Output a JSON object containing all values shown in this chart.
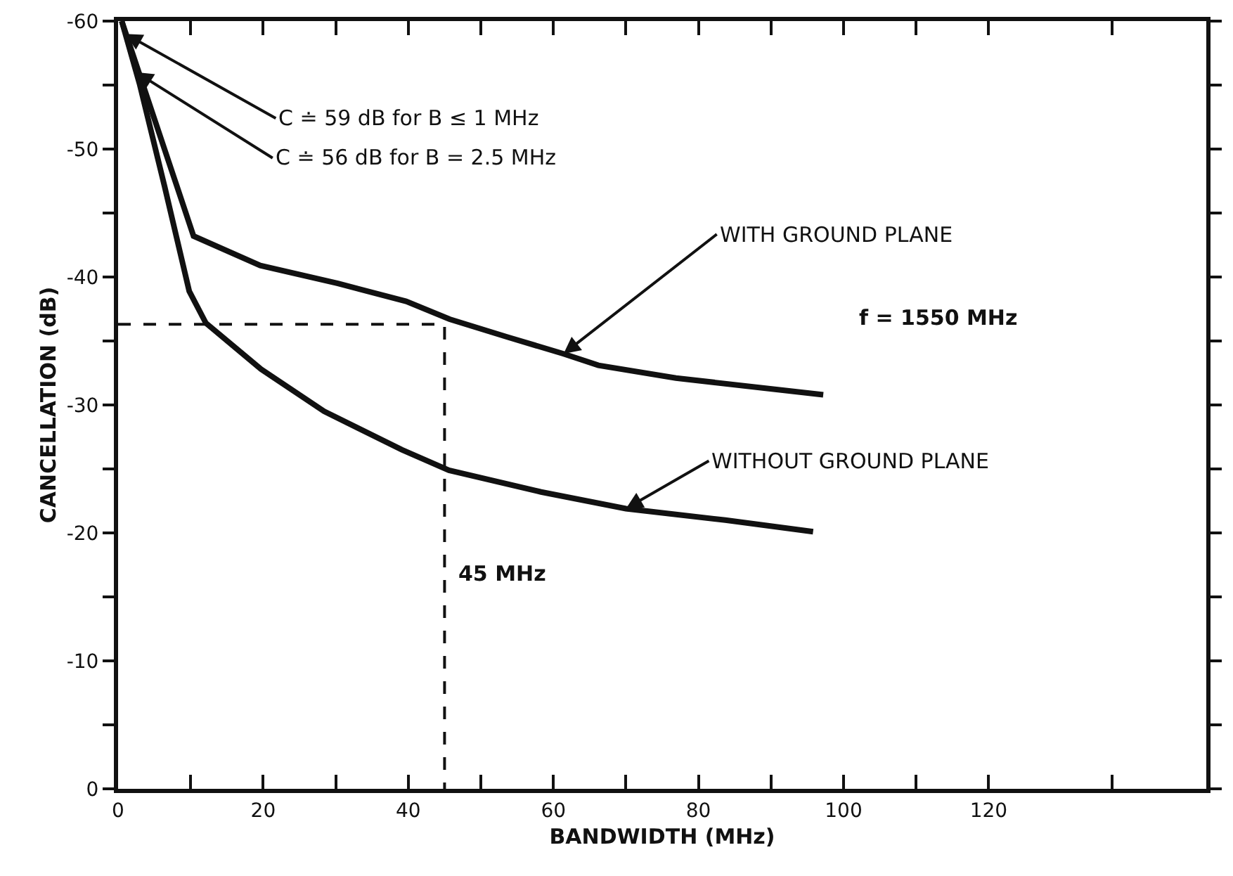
{
  "chart_data": {
    "type": "line",
    "xlabel": "BANDWIDTH (MHz)",
    "ylabel": "CANCELLATION (dB)",
    "xlim": [
      0,
      150
    ],
    "xticks": [
      0,
      {
        "value": 10,
        "label": null
      },
      20,
      {
        "value": 30,
        "label": null
      },
      40,
      {
        "value": 50,
        "label": null
      },
      60,
      {
        "value": 70,
        "label": null
      },
      80,
      {
        "value": 90,
        "label": null
      },
      100,
      {
        "value": 110,
        "label": null
      },
      120,
      {
        "value": 137,
        "label": null
      }
    ],
    "ylim": [
      0,
      -60
    ],
    "yticks": [
      0,
      {
        "value": -5,
        "label": null
      },
      -10,
      {
        "value": -15,
        "label": null
      },
      -20,
      {
        "value": -25,
        "label": null
      },
      -30,
      {
        "value": -35,
        "label": null
      },
      -40,
      {
        "value": -45,
        "label": null
      },
      -50,
      {
        "value": -55,
        "label": null
      },
      -60
    ],
    "series": [
      {
        "color": "#111111",
        "line_style": "solid",
        "x": [
          0.5,
          10.4,
          19.6,
          30.3,
          39.7,
          45.7,
          53.7,
          61.4,
          66.2,
          76.9,
          97.2
        ],
        "values": [
          -60,
          -43.2,
          -40.9,
          -39.5,
          -38.1,
          -36.7,
          -35.3,
          -34.0,
          -33.1,
          -32.1,
          -30.8
        ]
      },
      {
        "color": "#111111",
        "line_style": "solid",
        "x": [
          0.5,
          3,
          6.4,
          9.8,
          12.1,
          19.7,
          28.4,
          39.1,
          45.6,
          58.3,
          70,
          83.7,
          95.8
        ],
        "values": [
          -60,
          -55,
          -47.1,
          -38.9,
          -36.4,
          -32.8,
          -29.5,
          -26.5,
          -24.9,
          -23.2,
          -21.9,
          -21.0,
          -20.1
        ]
      },
      {
        "color": "#111111",
        "line_style": "dashed",
        "x": [
          0,
          45,
          45
        ],
        "values": [
          -36.3,
          -36.3,
          0
        ]
      }
    ],
    "annotations": [
      {
        "text": "C ≐ 59 dB for B ≤ 1 MHz",
        "x": 1,
        "y": -59
      },
      {
        "text": "C ≐ 56 dB for B = 2.5 MHz",
        "x": 2.5,
        "y": -56
      },
      {
        "text": "WITH GROUND PLANE",
        "x": 61.4,
        "y": -34.0
      },
      {
        "text": "WITHOUT GROUND PLANE",
        "x": 70,
        "y": -21.9
      },
      "f = 1550 MHz",
      "45 MHz"
    ]
  }
}
